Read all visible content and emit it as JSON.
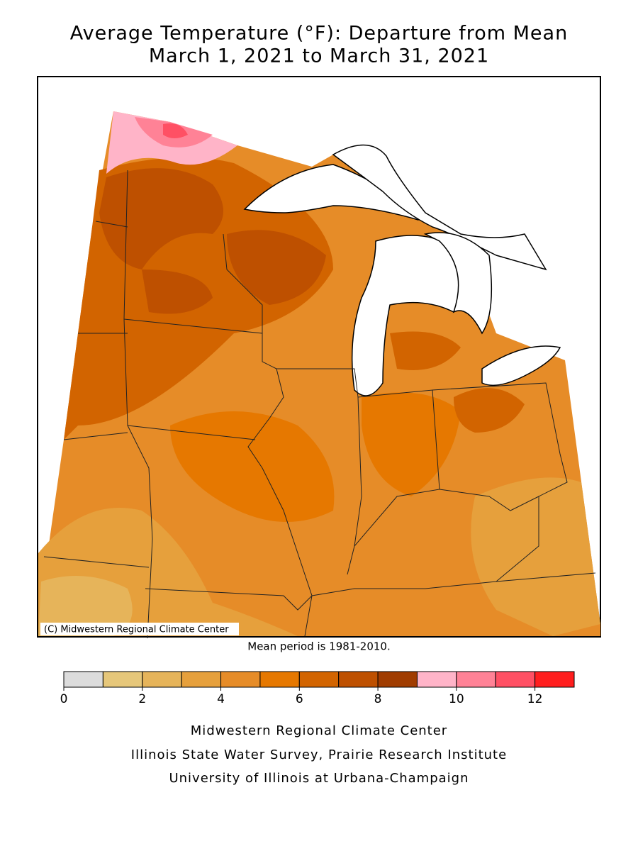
{
  "title": {
    "line1": "Average Temperature (°F): Departure from Mean",
    "line2": "March 1, 2021 to March 31, 2021"
  },
  "map": {
    "credit": "(C) Midwestern Regional Climate Center",
    "note": "Mean period is 1981-2010."
  },
  "legend": {
    "bins": [
      0,
      1,
      2,
      3,
      4,
      5,
      6,
      7,
      8,
      9,
      10,
      11,
      12,
      13
    ],
    "colors": [
      "#dcdcdc",
      "#e6c77a",
      "#e6b45a",
      "#e6a03c",
      "#e68c28",
      "#e67800",
      "#d26400",
      "#be5000",
      "#a03c00",
      "#ffb4c8",
      "#ff8296",
      "#ff5064",
      "#ff1e1e"
    ],
    "ticks": [
      0,
      2,
      4,
      6,
      8,
      10,
      12
    ]
  },
  "footer": [
    "Midwestern Regional Climate Center",
    "Illinois State Water Survey, Prairie Research Institute",
    "University of Illinois at Urbana-Champaign"
  ]
}
